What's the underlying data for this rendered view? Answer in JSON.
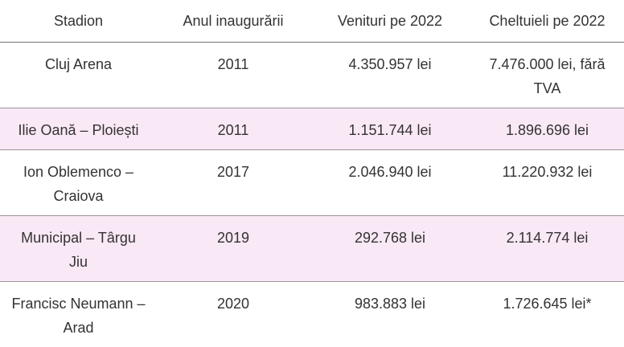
{
  "table": {
    "headers": [
      "Stadion",
      "Anul inaugurării",
      "Venituri pe 2022",
      "Cheltuieli pe 2022"
    ],
    "rows": [
      [
        "Cluj Arena",
        "2011",
        "4.350.957 lei",
        "7.476.000 lei, fără TVA"
      ],
      [
        "Ilie Oană – Ploiești",
        "2011",
        "1.151.744 lei",
        "1.896.696 lei"
      ],
      [
        "Ion Oblemenco – Craiova",
        "2017",
        "2.046.940 lei",
        "11.220.932 lei"
      ],
      [
        "Municipal – Târgu Jiu",
        "2019",
        "292.768 lei",
        "2.114.774 lei"
      ],
      [
        "Francisc Neumann – Arad",
        "2020",
        "983.883 lei",
        "1.726.645 lei*"
      ]
    ]
  },
  "colors": {
    "alt_row_background": "#f9e8f5",
    "border": "#9e9397",
    "text": "#333333"
  }
}
